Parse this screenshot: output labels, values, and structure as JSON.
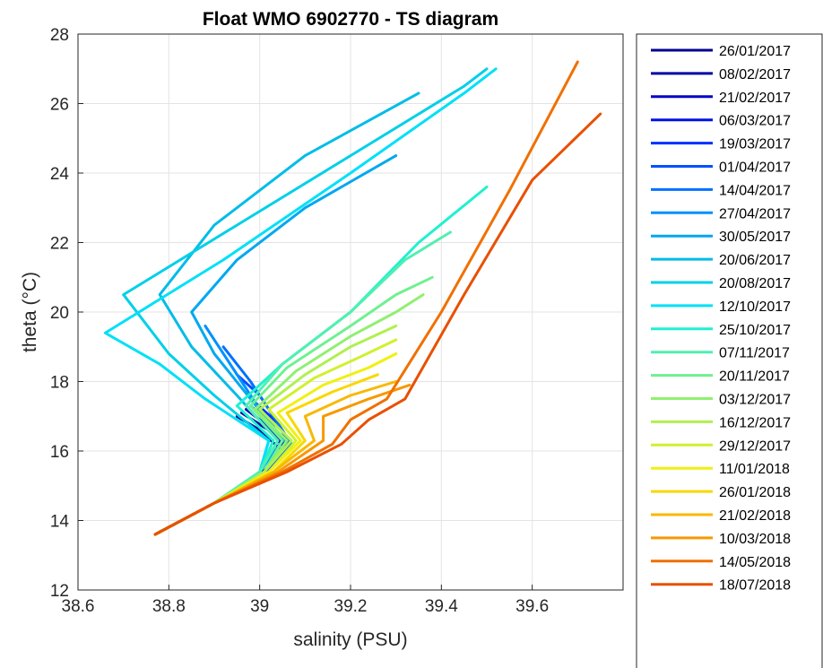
{
  "chart_data": {
    "type": "line",
    "title": "Float WMO 6902770 - TS diagram",
    "xlabel": "salinity (PSU)",
    "ylabel": "theta (°C)",
    "xlim": [
      38.6,
      39.8
    ],
    "ylim": [
      12,
      28
    ],
    "xticks": [
      "38.6",
      "38.8",
      "39",
      "39.2",
      "39.4",
      "39.6"
    ],
    "yticks": [
      "12",
      "14",
      "16",
      "18",
      "20",
      "22",
      "24",
      "26",
      "28"
    ],
    "grid": true,
    "legend_placement": "outside-right",
    "series": [
      {
        "name": "26/01/2017",
        "color": "#00008f",
        "x": [
          38.77,
          38.9,
          39.0,
          39.05,
          39.0,
          38.95
        ],
        "y": [
          13.6,
          14.5,
          15.3,
          16.0,
          16.6,
          17.0
        ]
      },
      {
        "name": "08/02/2017",
        "color": "#0000a8",
        "x": [
          38.77,
          38.9,
          39.0,
          39.06,
          39.02,
          38.96
        ],
        "y": [
          13.6,
          14.5,
          15.3,
          16.0,
          16.6,
          17.1
        ]
      },
      {
        "name": "21/02/2017",
        "color": "#0000c8",
        "x": [
          38.77,
          38.9,
          39.01,
          39.06,
          39.02,
          38.97
        ],
        "y": [
          13.6,
          14.5,
          15.3,
          16.0,
          16.7,
          17.2
        ]
      },
      {
        "name": "06/03/2017",
        "color": "#0010e8",
        "x": [
          38.77,
          38.9,
          39.01,
          39.06,
          39.03,
          38.98
        ],
        "y": [
          13.6,
          14.5,
          15.3,
          16.1,
          16.7,
          17.3
        ]
      },
      {
        "name": "19/03/2017",
        "color": "#0030ff",
        "x": [
          38.77,
          38.9,
          39.01,
          39.07,
          39.04,
          38.99
        ],
        "y": [
          13.6,
          14.5,
          15.3,
          16.1,
          16.8,
          17.4
        ]
      },
      {
        "name": "01/04/2017",
        "color": "#0050ff",
        "x": [
          38.77,
          38.9,
          39.01,
          39.07,
          39.04,
          39.0,
          38.95
        ],
        "y": [
          13.6,
          14.5,
          15.3,
          16.1,
          16.8,
          17.6,
          18.2
        ]
      },
      {
        "name": "14/04/2017",
        "color": "#0070ff",
        "x": [
          38.77,
          38.9,
          39.01,
          39.07,
          39.03,
          38.98,
          38.92
        ],
        "y": [
          13.6,
          14.5,
          15.4,
          16.2,
          17.0,
          18.0,
          19.0
        ]
      },
      {
        "name": "27/04/2017",
        "color": "#0090ff",
        "x": [
          38.77,
          38.9,
          39.01,
          39.06,
          39.0,
          38.94,
          38.88
        ],
        "y": [
          13.6,
          14.5,
          15.4,
          16.2,
          17.2,
          18.4,
          19.6
        ]
      },
      {
        "name": "30/05/2017",
        "color": "#00a8f0",
        "x": [
          38.77,
          38.9,
          39.0,
          39.05,
          38.98,
          38.9,
          38.85,
          38.95,
          39.1,
          39.3
        ],
        "y": [
          13.6,
          14.5,
          15.4,
          16.3,
          17.5,
          18.8,
          20.0,
          21.5,
          23.0,
          24.5
        ]
      },
      {
        "name": "20/06/2017",
        "color": "#00bce8",
        "x": [
          38.77,
          38.9,
          39.0,
          39.04,
          38.95,
          38.85,
          38.78,
          38.9,
          39.1,
          39.35
        ],
        "y": [
          13.6,
          14.5,
          15.4,
          16.3,
          17.6,
          19.0,
          20.5,
          22.5,
          24.5,
          26.3
        ]
      },
      {
        "name": "20/08/2017",
        "color": "#00d0e8",
        "x": [
          38.77,
          38.9,
          39.0,
          39.02,
          38.9,
          38.8,
          38.7,
          38.95,
          39.2,
          39.45,
          39.5
        ],
        "y": [
          13.6,
          14.5,
          15.4,
          16.3,
          17.6,
          18.8,
          20.5,
          22.5,
          24.5,
          26.5,
          27.0
        ]
      },
      {
        "name": "12/10/2017",
        "color": "#00e0f8",
        "x": [
          38.77,
          38.9,
          39.0,
          39.02,
          38.88,
          38.78,
          38.66,
          38.92,
          39.2,
          39.45,
          39.52
        ],
        "y": [
          13.6,
          14.5,
          15.4,
          16.3,
          17.5,
          18.5,
          19.4,
          21.5,
          24.0,
          26.3,
          27.0
        ]
      },
      {
        "name": "25/10/2017",
        "color": "#20f0d0",
        "x": [
          38.77,
          38.9,
          39.0,
          39.03,
          38.95,
          39.05,
          39.2,
          39.35,
          39.5
        ],
        "y": [
          13.6,
          14.5,
          15.4,
          16.3,
          17.3,
          18.5,
          20.0,
          22.0,
          23.6
        ]
      },
      {
        "name": "07/11/2017",
        "color": "#50f0b0",
        "x": [
          38.77,
          38.9,
          39.0,
          39.04,
          38.97,
          39.05,
          39.2,
          39.32,
          39.42
        ],
        "y": [
          13.6,
          14.5,
          15.4,
          16.3,
          17.3,
          18.5,
          20.0,
          21.5,
          22.3
        ]
      },
      {
        "name": "20/11/2017",
        "color": "#70f090",
        "x": [
          38.77,
          38.9,
          39.01,
          39.05,
          38.98,
          39.06,
          39.2,
          39.3,
          39.38
        ],
        "y": [
          13.6,
          14.5,
          15.4,
          16.3,
          17.3,
          18.4,
          19.6,
          20.5,
          21.0
        ]
      },
      {
        "name": "03/12/2017",
        "color": "#90f070",
        "x": [
          38.77,
          38.9,
          39.01,
          39.06,
          38.99,
          39.08,
          39.2,
          39.3,
          39.36
        ],
        "y": [
          13.6,
          14.5,
          15.4,
          16.3,
          17.2,
          18.3,
          19.3,
          20.0,
          20.5
        ]
      },
      {
        "name": "16/12/2017",
        "color": "#b0f050",
        "x": [
          38.77,
          38.9,
          39.01,
          39.07,
          39.0,
          39.1,
          39.2,
          39.3
        ],
        "y": [
          13.6,
          14.5,
          15.4,
          16.3,
          17.2,
          18.2,
          19.0,
          19.6
        ]
      },
      {
        "name": "29/12/2017",
        "color": "#d0f030",
        "x": [
          38.77,
          38.9,
          39.02,
          39.08,
          39.02,
          39.12,
          39.22,
          39.3
        ],
        "y": [
          13.6,
          14.5,
          15.4,
          16.3,
          17.2,
          18.1,
          18.7,
          19.2
        ]
      },
      {
        "name": "11/01/2018",
        "color": "#f0f010",
        "x": [
          38.77,
          38.9,
          39.02,
          39.09,
          39.04,
          39.14,
          39.24,
          39.3
        ],
        "y": [
          13.6,
          14.5,
          15.4,
          16.3,
          17.1,
          17.9,
          18.4,
          18.8
        ]
      },
      {
        "name": "26/01/2018",
        "color": "#f8d800",
        "x": [
          38.77,
          38.9,
          39.03,
          39.1,
          39.06,
          39.16,
          39.26
        ],
        "y": [
          13.6,
          14.5,
          15.4,
          16.3,
          17.1,
          17.7,
          18.2
        ]
      },
      {
        "name": "21/02/2018",
        "color": "#f8b800",
        "x": [
          38.77,
          38.9,
          39.03,
          39.12,
          39.1,
          39.2,
          39.3
        ],
        "y": [
          13.6,
          14.5,
          15.4,
          16.3,
          17.0,
          17.6,
          18.0
        ]
      },
      {
        "name": "10/03/2018",
        "color": "#f89800",
        "x": [
          38.77,
          38.9,
          39.04,
          39.14,
          39.14,
          39.24,
          39.33
        ],
        "y": [
          13.6,
          14.5,
          15.4,
          16.3,
          17.0,
          17.5,
          17.9
        ]
      },
      {
        "name": "14/05/2018",
        "color": "#f07000",
        "x": [
          38.77,
          38.9,
          39.05,
          39.16,
          39.2,
          39.28,
          39.4,
          39.55,
          39.7
        ],
        "y": [
          13.6,
          14.5,
          15.4,
          16.2,
          16.9,
          17.5,
          20.0,
          23.5,
          27.2
        ]
      },
      {
        "name": "18/07/2018",
        "color": "#e85000",
        "x": [
          38.77,
          38.9,
          39.06,
          39.18,
          39.24,
          39.32,
          39.45,
          39.6,
          39.75
        ],
        "y": [
          13.6,
          14.5,
          15.4,
          16.2,
          16.9,
          17.5,
          20.5,
          23.8,
          25.7
        ]
      }
    ]
  }
}
